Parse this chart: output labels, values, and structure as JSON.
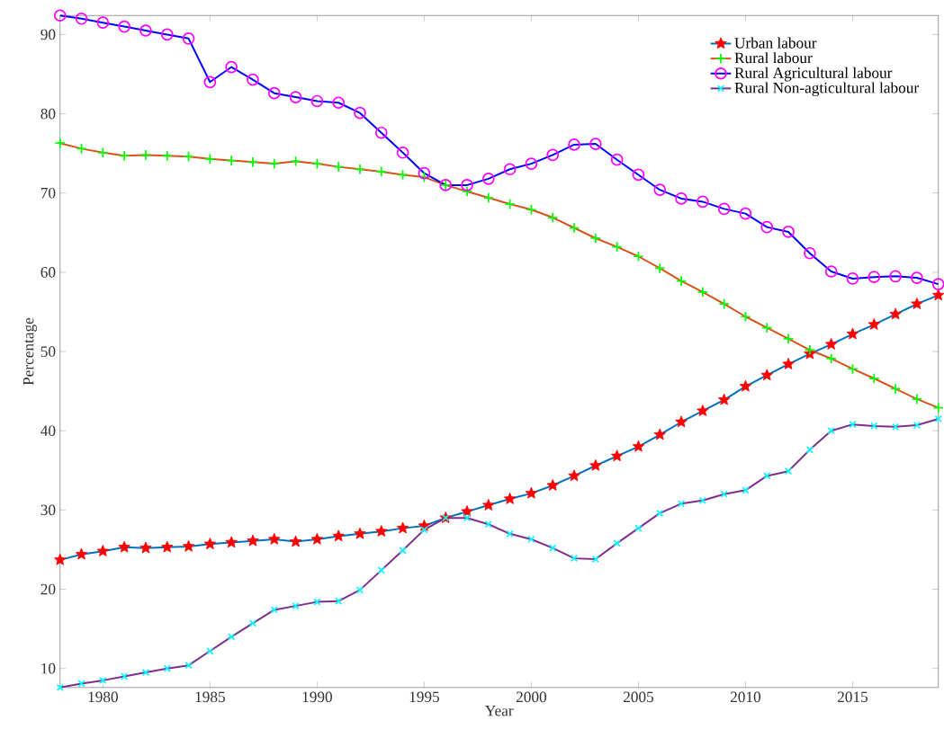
{
  "chart_data": {
    "type": "line",
    "xlabel": "Year",
    "ylabel": "Percentage",
    "x": [
      1978,
      1979,
      1980,
      1981,
      1982,
      1983,
      1984,
      1985,
      1986,
      1987,
      1988,
      1989,
      1990,
      1991,
      1992,
      1993,
      1994,
      1995,
      1996,
      1997,
      1998,
      1999,
      2000,
      2001,
      2002,
      2003,
      2004,
      2005,
      2006,
      2007,
      2008,
      2009,
      2010,
      2011,
      2012,
      2013,
      2014,
      2015,
      2016,
      2017,
      2018,
      2019
    ],
    "series": [
      {
        "name": "Urban labour",
        "color": "#0072bd",
        "marker": "star",
        "colors": [
          "#ff0000",
          "#ff0000",
          "#ff0000",
          "#ff0000",
          "#ff0000",
          "#ff0000",
          "#ff0000",
          "#ff0000",
          "#ff0000",
          "#ff0000",
          "#ff0000",
          "#ff0000",
          "#ff0000",
          "#ff0000",
          "#ff0000",
          "#ff0000",
          "#ff0000",
          "#ff0000",
          "#ff0000",
          "#ff0000",
          "#ff0000",
          "#ff0000",
          "#ff0000",
          "#ff0000",
          "#ff0000",
          "#ff0000",
          "#ff0000",
          "#ff0000",
          "#ff0000",
          "#ff0000",
          "#ff0000",
          "#ff0000",
          "#ff0000",
          "#ff0000",
          "#ff0000",
          "#ff0000",
          "#ff0000",
          "#ff0000",
          "#ff0000",
          "#ff0000",
          "#ff0000",
          "#ff0000"
        ],
        "values": [
          23.7,
          24.4,
          24.8,
          25.3,
          25.2,
          25.3,
          25.4,
          25.7,
          25.9,
          26.1,
          26.3,
          26.0,
          26.3,
          26.7,
          27.0,
          27.3,
          27.7,
          28.0,
          29.0,
          29.8,
          30.6,
          31.4,
          32.1,
          33.1,
          34.3,
          35.6,
          36.8,
          38.0,
          39.5,
          41.1,
          42.5,
          43.9,
          45.6,
          47.0,
          48.4,
          49.7,
          50.9,
          52.2,
          53.4,
          54.7,
          56.0,
          57.1
        ]
      },
      {
        "name": "Rural labour",
        "color": "#d95319",
        "marker": "plus",
        "colors": [
          "#00ff00",
          "#00ff00",
          "#00ff00",
          "#00ff00",
          "#00ff00",
          "#00ff00",
          "#00ff00",
          "#00ff00",
          "#00ff00",
          "#00ff00",
          "#00ff00",
          "#00ff00",
          "#00ff00",
          "#00ff00",
          "#00ff00",
          "#00ff00",
          "#00ff00",
          "#00ff00",
          "#00ff00",
          "#00ff00",
          "#00ff00",
          "#00ff00",
          "#00ff00",
          "#00ff00",
          "#00ff00",
          "#00ff00",
          "#00ff00",
          "#00ff00",
          "#00ff00",
          "#00ff00",
          "#00ff00",
          "#00ff00",
          "#00ff00",
          "#00ff00",
          "#00ff00",
          "#00ff00",
          "#00ff00",
          "#00ff00",
          "#00ff00",
          "#00ff00",
          "#00ff00",
          "#00ff00"
        ],
        "values": [
          76.3,
          75.6,
          75.1,
          74.7,
          74.8,
          74.7,
          74.6,
          74.3,
          74.1,
          73.9,
          73.7,
          74.0,
          73.7,
          73.3,
          73.0,
          72.7,
          72.3,
          72.0,
          71.0,
          70.2,
          69.4,
          68.6,
          67.9,
          66.9,
          65.6,
          64.3,
          63.2,
          62.0,
          60.5,
          58.9,
          57.5,
          56.0,
          54.4,
          53.0,
          51.6,
          50.2,
          49.1,
          47.8,
          46.6,
          45.3,
          44.0,
          42.9
        ]
      },
      {
        "name": "Rural Agricultural labour",
        "color": "#0000ff",
        "marker": "circle",
        "colors": [
          "#ff00ff",
          "#ff00ff",
          "#ff00ff",
          "#ff00ff",
          "#ff00ff",
          "#ff00ff",
          "#ff00ff",
          "#ff00ff",
          "#ff00ff",
          "#ff00ff",
          "#ff00ff",
          "#ff00ff",
          "#ff00ff",
          "#ff00ff",
          "#ff00ff",
          "#ff00ff",
          "#ff00ff",
          "#ff00ff",
          "#ff00ff",
          "#ff00ff",
          "#ff00ff",
          "#ff00ff",
          "#ff00ff",
          "#ff00ff",
          "#ff00ff",
          "#ff00ff",
          "#ff00ff",
          "#ff00ff",
          "#ff00ff",
          "#ff00ff",
          "#ff00ff",
          "#ff00ff",
          "#ff00ff",
          "#ff00ff",
          "#ff00ff",
          "#ff00ff",
          "#ff00ff",
          "#ff00ff",
          "#ff00ff",
          "#ff00ff",
          "#ff00ff",
          "#ff00ff"
        ],
        "values": [
          92.4,
          92.0,
          91.5,
          91.0,
          90.5,
          90.0,
          89.5,
          84.0,
          85.9,
          84.3,
          82.6,
          82.1,
          81.6,
          81.4,
          80.1,
          77.6,
          75.1,
          72.5,
          71.0,
          71.0,
          71.8,
          73.0,
          73.7,
          74.8,
          76.1,
          76.2,
          74.2,
          72.3,
          70.4,
          69.3,
          68.9,
          68.0,
          67.4,
          65.7,
          65.1,
          62.4,
          60.1,
          59.2,
          59.4,
          59.5,
          59.3,
          58.5
        ]
      },
      {
        "name": "Rural Non-agticultural labour",
        "color": "#7e2f8e",
        "marker": "cross",
        "colors": [
          "#00ffff",
          "#00ffff",
          "#00ffff",
          "#00ffff",
          "#00ffff",
          "#00ffff",
          "#00ffff",
          "#00ffff",
          "#00ffff",
          "#00ffff",
          "#00ffff",
          "#00ffff",
          "#00ffff",
          "#00ffff",
          "#00ffff",
          "#00ffff",
          "#00ffff",
          "#00ffff",
          "#00ffff",
          "#00ffff",
          "#00ffff",
          "#00ffff",
          "#00ffff",
          "#00ffff",
          "#00ffff",
          "#00ffff",
          "#00ffff",
          "#00ffff",
          "#00ffff",
          "#00ffff",
          "#00ffff",
          "#00ffff",
          "#00ffff",
          "#00ffff",
          "#00ffff",
          "#00ffff",
          "#00ffff",
          "#00ffff",
          "#00ffff",
          "#00ffff",
          "#00ffff",
          "#00ffff"
        ],
        "values": [
          7.6,
          8.1,
          8.5,
          9.0,
          9.5,
          10.0,
          10.4,
          12.2,
          14.0,
          15.7,
          17.4,
          17.9,
          18.4,
          18.5,
          19.9,
          22.4,
          24.9,
          27.5,
          29.0,
          29.0,
          28.2,
          27.0,
          26.3,
          25.2,
          23.9,
          23.8,
          25.8,
          27.7,
          29.6,
          30.8,
          31.2,
          32.0,
          32.5,
          34.3,
          34.9,
          37.6,
          40.0,
          40.8,
          40.6,
          40.5,
          40.7,
          41.5
        ]
      }
    ],
    "xlim": [
      1978,
      2019
    ],
    "ylim": [
      7.6,
      92.4
    ],
    "xticks": [
      1980,
      1985,
      1990,
      1995,
      2000,
      2005,
      2010,
      2015
    ],
    "yticks": [
      10,
      20,
      30,
      40,
      50,
      60,
      70,
      80,
      90
    ],
    "grid": false,
    "legend": "top right",
    "line_style": "solid"
  }
}
